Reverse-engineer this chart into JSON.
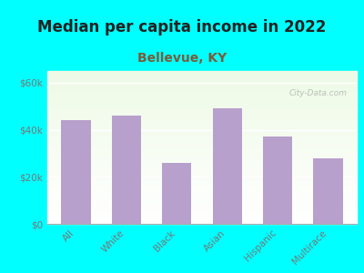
{
  "title": "Median per capita income in 2022",
  "subtitle": "Bellevue, KY",
  "categories": [
    "All",
    "White",
    "Black",
    "Asian",
    "Hispanic",
    "Multirace"
  ],
  "values": [
    44000,
    46000,
    26000,
    49000,
    37000,
    28000
  ],
  "bar_color": "#b8a0cc",
  "background_outer": "#00ffff",
  "title_fontsize": 12,
  "title_color": "#222222",
  "subtitle_fontsize": 10,
  "subtitle_color": "#7a5c3a",
  "tick_label_color": "#777777",
  "ylabel_ticks": [
    "$0",
    "$20k",
    "$40k",
    "$60k"
  ],
  "ytick_values": [
    0,
    20000,
    40000,
    60000
  ],
  "ylim": [
    0,
    65000
  ],
  "watermark": "City-Data.com"
}
